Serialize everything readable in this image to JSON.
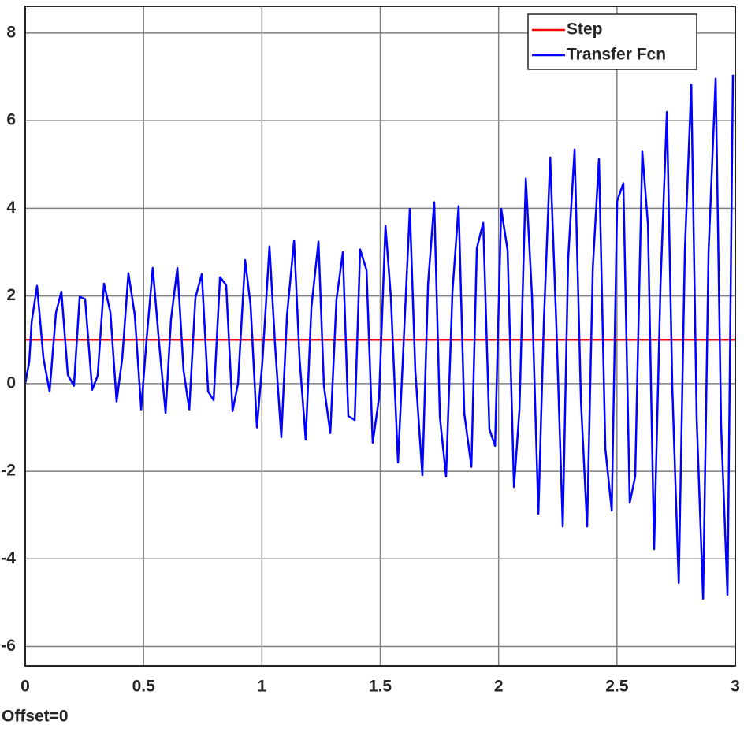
{
  "chart_data": {
    "type": "line",
    "annotation": "Offset=0",
    "xlim": [
      0,
      3
    ],
    "ylim": [
      -6.44,
      8.61
    ],
    "xticks": [
      0,
      0.5,
      1,
      1.5,
      2,
      2.5,
      3
    ],
    "yticks": [
      -6,
      -4,
      -2,
      0,
      2,
      4,
      6,
      8
    ],
    "grid": true,
    "legend": "top-right",
    "series": [
      {
        "name": "Step",
        "color": "#ff0000",
        "x": [
          0,
          3
        ],
        "values": [
          1,
          1
        ]
      },
      {
        "name": "Transfer Fcn",
        "color": "#0000ff",
        "x": [
          0,
          0.017,
          0.027,
          0.05,
          0.077,
          0.103,
          0.13,
          0.153,
          0.18,
          0.206,
          0.23,
          0.253,
          0.283,
          0.306,
          0.333,
          0.36,
          0.386,
          0.41,
          0.436,
          0.463,
          0.49,
          0.513,
          0.539,
          0.566,
          0.593,
          0.616,
          0.643,
          0.669,
          0.693,
          0.719,
          0.746,
          0.773,
          0.796,
          0.823,
          0.849,
          0.876,
          0.899,
          0.929,
          0.952,
          0.979,
          1.002,
          1.032,
          1.056,
          1.082,
          1.106,
          1.136,
          1.159,
          1.185,
          1.209,
          1.239,
          1.262,
          1.289,
          1.315,
          1.342,
          1.365,
          1.392,
          1.415,
          1.442,
          1.468,
          1.495,
          1.522,
          1.545,
          1.575,
          1.598,
          1.625,
          1.648,
          1.678,
          1.702,
          1.728,
          1.752,
          1.778,
          1.805,
          1.831,
          1.855,
          1.885,
          1.908,
          1.935,
          1.961,
          1.985,
          2.011,
          2.038,
          2.065,
          2.088,
          2.115,
          2.141,
          2.168,
          2.191,
          2.218,
          2.244,
          2.271,
          2.294,
          2.321,
          2.348,
          2.374,
          2.398,
          2.424,
          2.451,
          2.478,
          2.501,
          2.527,
          2.554,
          2.577,
          2.607,
          2.631,
          2.657,
          2.684,
          2.711,
          2.734,
          2.761,
          2.787,
          2.814,
          2.837,
          2.864,
          2.887,
          2.917,
          2.94,
          2.967,
          2.99
        ],
        "values": [
          0,
          0.5,
          1.4,
          2.23,
          0.58,
          -0.18,
          1.62,
          2.1,
          0.2,
          -0.05,
          1.98,
          1.93,
          -0.14,
          0.18,
          2.28,
          1.62,
          -0.41,
          0.58,
          2.52,
          1.56,
          -0.59,
          1.03,
          2.64,
          0.9,
          -0.67,
          1.47,
          2.64,
          0.3,
          -0.59,
          1.96,
          2.5,
          -0.18,
          -0.38,
          2.43,
          2.25,
          -0.63,
          0,
          2.82,
          1.8,
          -1.0,
          0.49,
          3.13,
          0.85,
          -1.22,
          1.56,
          3.27,
          0.58,
          -1.28,
          1.74,
          3.24,
          -0.05,
          -1.13,
          1.92,
          3.0,
          -0.74,
          -0.83,
          3.06,
          2.59,
          -1.35,
          -0.32,
          3.6,
          1.96,
          -1.8,
          0.85,
          3.99,
          0.3,
          -2.09,
          2.28,
          4.14,
          -0.77,
          -2.12,
          2.1,
          4.05,
          -0.68,
          -1.9,
          3.09,
          3.67,
          -1.04,
          -1.42,
          3.99,
          3.04,
          -2.36,
          -0.59,
          4.68,
          2.01,
          -2.97,
          1.38,
          5.16,
          1.33,
          -3.26,
          2.86,
          5.34,
          -0.41,
          -3.26,
          2.64,
          5.13,
          -1.49,
          -2.9,
          4.17,
          4.57,
          -2.72,
          -2.12,
          5.29,
          3.63,
          -3.78,
          2.25,
          6.2,
          -0.11,
          -4.55,
          3.04,
          6.82,
          -0.81,
          -4.91,
          3.0,
          6.96,
          -0.95,
          -4.82,
          7.05
        ]
      }
    ]
  }
}
